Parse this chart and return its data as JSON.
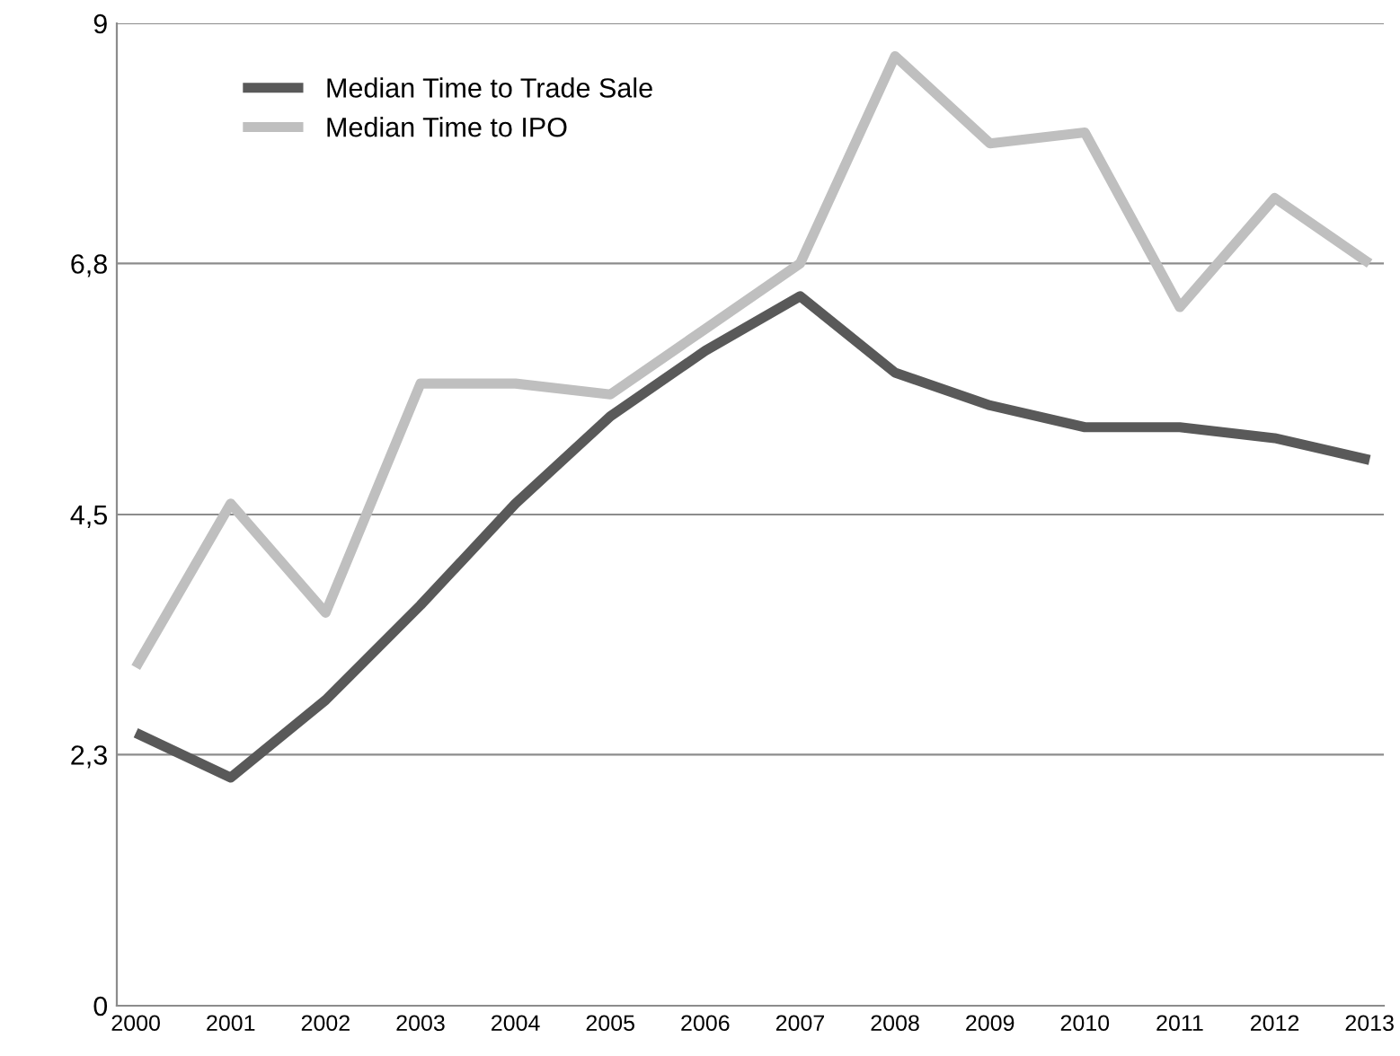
{
  "chart_data": {
    "type": "line",
    "categories": [
      "2000",
      "2001",
      "2002",
      "2003",
      "2004",
      "2005",
      "2006",
      "2007",
      "2008",
      "2009",
      "2010",
      "2011",
      "2012",
      "2013"
    ],
    "series": [
      {
        "name": "Median Time to Trade Sale",
        "color": "#595959",
        "values": [
          2.5,
          2.09,
          2.8,
          3.67,
          4.6,
          5.4,
          6.0,
          6.5,
          5.8,
          5.5,
          5.3,
          5.3,
          5.2,
          5.0
        ]
      },
      {
        "name": "Median Time to IPO",
        "color": "#bfbfbf",
        "values": [
          3.1,
          4.6,
          3.6,
          5.7,
          5.7,
          5.6,
          6.2,
          6.8,
          8.7,
          7.9,
          8.0,
          6.4,
          7.4,
          6.8
        ]
      }
    ],
    "ylim": [
      0,
      9
    ],
    "yticks": [
      0,
      {
        "value": 2.3,
        "label": "2,3"
      },
      {
        "value": 4.5,
        "label": "4,5"
      },
      {
        "value": 6.8,
        "label": "6,8"
      },
      9
    ],
    "grid": "y",
    "legend": "top left",
    "marker": "none",
    "line_style": "solid"
  }
}
